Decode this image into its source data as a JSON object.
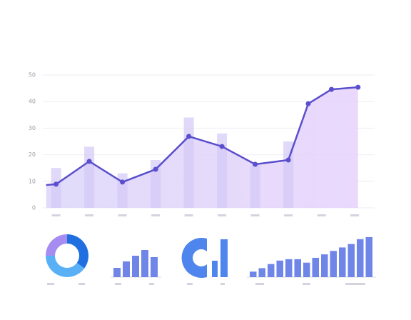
{
  "chart_data": [
    {
      "type": "line",
      "categories": [
        null,
        null,
        null,
        null,
        null,
        null,
        null,
        null,
        null,
        null
      ],
      "ylim": [
        0,
        50
      ],
      "yticks": [
        0,
        10,
        20,
        30,
        40,
        50
      ],
      "grid": true,
      "xlim": [
        -0.4,
        9.6
      ],
      "bars": {
        "color": "#d3c9f6",
        "values": [
          15,
          23,
          13,
          18,
          34,
          28,
          16,
          25,
          null,
          null
        ]
      },
      "series": [
        {
          "color": "#5a4fcc",
          "x": [
            -0.3,
            0,
            1,
            2,
            3,
            4,
            5,
            6,
            7,
            7.6,
            8.3,
            9.1
          ],
          "values": [
            8.6,
            8.9,
            17.5,
            9.7,
            14.5,
            26.9,
            23.1,
            16.4,
            18,
            39.2,
            44.6,
            45.4
          ]
        }
      ]
    },
    {
      "type": "pie",
      "values": [
        35,
        40,
        25
      ],
      "colors": [
        "#1f6fe0",
        "#5ab0f5",
        "#a68cf0"
      ]
    },
    {
      "type": "bar",
      "values": [
        13,
        22,
        30,
        38,
        28
      ],
      "ylim": [
        0,
        40
      ],
      "color": "#6f86e8"
    },
    {
      "type": "bar",
      "values": [
        8,
        13,
        19,
        24,
        26,
        26,
        21,
        28,
        33,
        38,
        43,
        48,
        55,
        58
      ],
      "ylim": [
        0,
        60
      ],
      "color": "#6f86e8"
    }
  ]
}
